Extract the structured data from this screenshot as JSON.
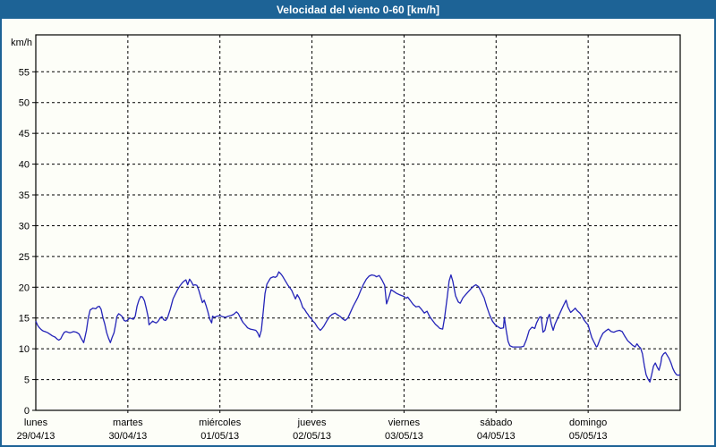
{
  "window": {
    "title": "Velocidad del viento 0-60 [km/h]"
  },
  "colors": {
    "frame_blue": "#1d6396",
    "title_text": "#ffffff",
    "chart_background": "#fdfef8",
    "plot_border": "#000000",
    "grid": "#000000",
    "line": "#2424b8",
    "label_text": "#000000"
  },
  "chart_data": {
    "type": "line",
    "title": "Velocidad del viento 0-60 [km/h]",
    "ylabel": "km/h",
    "xlabel": "",
    "ylim": [
      0,
      61
    ],
    "yticks": [
      0,
      5,
      10,
      15,
      20,
      25,
      30,
      35,
      40,
      45,
      50,
      55
    ],
    "x_range_days": [
      0,
      7
    ],
    "grid": "dashed",
    "legend": null,
    "x_days": [
      {
        "name": "lunes",
        "date": "29/04/13"
      },
      {
        "name": "martes",
        "date": "30/04/13"
      },
      {
        "name": "miércoles",
        "date": "01/05/13"
      },
      {
        "name": "jueves",
        "date": "02/05/13"
      },
      {
        "name": "viernes",
        "date": "03/05/13"
      },
      {
        "name": "sábado",
        "date": "04/05/13"
      },
      {
        "name": "domingo",
        "date": "05/05/13"
      }
    ],
    "series": [
      {
        "name": "Velocidad del viento",
        "units": "km/h",
        "color": "#2424b8",
        "points": [
          [
            0,
            14.5
          ],
          [
            0.02,
            13.8
          ],
          [
            0.04,
            13.4
          ],
          [
            0.06,
            13.1
          ],
          [
            0.08,
            12.9
          ],
          [
            0.1,
            12.8
          ],
          [
            0.13,
            12.6
          ],
          [
            0.16,
            12.3
          ],
          [
            0.18,
            12.1
          ],
          [
            0.21,
            11.9
          ],
          [
            0.23,
            11.6
          ],
          [
            0.25,
            11.4
          ],
          [
            0.27,
            11.6
          ],
          [
            0.29,
            12.2
          ],
          [
            0.31,
            12.7
          ],
          [
            0.33,
            12.8
          ],
          [
            0.35,
            12.7
          ],
          [
            0.37,
            12.6
          ],
          [
            0.39,
            12.7
          ],
          [
            0.41,
            12.8
          ],
          [
            0.44,
            12.7
          ],
          [
            0.47,
            12.4
          ],
          [
            0.49,
            11.8
          ],
          [
            0.52,
            11.0
          ],
          [
            0.53,
            11.6
          ],
          [
            0.55,
            13.0
          ],
          [
            0.57,
            15.0
          ],
          [
            0.59,
            16.3
          ],
          [
            0.62,
            16.6
          ],
          [
            0.65,
            16.5
          ],
          [
            0.67,
            16.8
          ],
          [
            0.69,
            16.9
          ],
          [
            0.71,
            16.4
          ],
          [
            0.73,
            15.0
          ],
          [
            0.75,
            14.0
          ],
          [
            0.77,
            12.6
          ],
          [
            0.79,
            11.7
          ],
          [
            0.81,
            11.0
          ],
          [
            0.83,
            11.9
          ],
          [
            0.85,
            12.6
          ],
          [
            0.87,
            14.2
          ],
          [
            0.88,
            15.2
          ],
          [
            0.9,
            15.7
          ],
          [
            0.92,
            15.5
          ],
          [
            0.94,
            15.2
          ],
          [
            0.96,
            14.6
          ],
          [
            0.98,
            14.5
          ],
          [
            1.0,
            14.7
          ],
          [
            1.02,
            15.0
          ],
          [
            1.04,
            14.9
          ],
          [
            1.06,
            14.8
          ],
          [
            1.08,
            15.3
          ],
          [
            1.1,
            16.9
          ],
          [
            1.12,
            17.9
          ],
          [
            1.14,
            18.5
          ],
          [
            1.16,
            18.4
          ],
          [
            1.18,
            17.8
          ],
          [
            1.2,
            16.6
          ],
          [
            1.22,
            15.2
          ],
          [
            1.23,
            13.9
          ],
          [
            1.25,
            14.2
          ],
          [
            1.27,
            14.5
          ],
          [
            1.29,
            14.3
          ],
          [
            1.31,
            14.2
          ],
          [
            1.33,
            14.5
          ],
          [
            1.35,
            15.0
          ],
          [
            1.37,
            15.2
          ],
          [
            1.39,
            14.7
          ],
          [
            1.41,
            14.6
          ],
          [
            1.43,
            15.0
          ],
          [
            1.46,
            16.4
          ],
          [
            1.49,
            18.1
          ],
          [
            1.52,
            19.0
          ],
          [
            1.54,
            19.6
          ],
          [
            1.56,
            20.1
          ],
          [
            1.59,
            20.7
          ],
          [
            1.61,
            21.0
          ],
          [
            1.63,
            21.2
          ],
          [
            1.65,
            20.4
          ],
          [
            1.67,
            21.3
          ],
          [
            1.69,
            20.9
          ],
          [
            1.71,
            20.3
          ],
          [
            1.73,
            20.4
          ],
          [
            1.75,
            20.3
          ],
          [
            1.77,
            19.5
          ],
          [
            1.79,
            18.5
          ],
          [
            1.81,
            17.5
          ],
          [
            1.83,
            17.9
          ],
          [
            1.85,
            17.0
          ],
          [
            1.87,
            16.0
          ],
          [
            1.89,
            14.8
          ],
          [
            1.91,
            14.2
          ],
          [
            1.92,
            15.3
          ],
          [
            1.94,
            15.1
          ],
          [
            1.97,
            15.3
          ],
          [
            2.0,
            15.4
          ],
          [
            2.03,
            15.2
          ],
          [
            2.06,
            15.1
          ],
          [
            2.09,
            15.3
          ],
          [
            2.12,
            15.4
          ],
          [
            2.15,
            15.6
          ],
          [
            2.18,
            16.0
          ],
          [
            2.2,
            15.7
          ],
          [
            2.22,
            15.1
          ],
          [
            2.25,
            14.3
          ],
          [
            2.28,
            13.8
          ],
          [
            2.3,
            13.4
          ],
          [
            2.33,
            13.2
          ],
          [
            2.36,
            13.1
          ],
          [
            2.39,
            13.0
          ],
          [
            2.41,
            12.6
          ],
          [
            2.43,
            11.9
          ],
          [
            2.45,
            13.0
          ],
          [
            2.47,
            16.0
          ],
          [
            2.49,
            19.0
          ],
          [
            2.51,
            20.5
          ],
          [
            2.53,
            21.0
          ],
          [
            2.55,
            21.5
          ],
          [
            2.58,
            21.7
          ],
          [
            2.6,
            21.6
          ],
          [
            2.62,
            21.8
          ],
          [
            2.64,
            22.5
          ],
          [
            2.66,
            22.2
          ],
          [
            2.68,
            21.8
          ],
          [
            2.7,
            21.3
          ],
          [
            2.72,
            20.8
          ],
          [
            2.74,
            20.3
          ],
          [
            2.76,
            19.9
          ],
          [
            2.78,
            19.5
          ],
          [
            2.8,
            18.8
          ],
          [
            2.82,
            18.1
          ],
          [
            2.84,
            18.8
          ],
          [
            2.86,
            18.3
          ],
          [
            2.88,
            17.6
          ],
          [
            2.9,
            16.7
          ],
          [
            2.92,
            16.4
          ],
          [
            2.94,
            15.9
          ],
          [
            2.96,
            15.5
          ],
          [
            2.97,
            15.2
          ],
          [
            2.99,
            15.0
          ],
          [
            3.01,
            14.5
          ],
          [
            3.03,
            14.2
          ],
          [
            3.06,
            13.5
          ],
          [
            3.09,
            13.0
          ],
          [
            3.11,
            13.3
          ],
          [
            3.13,
            13.7
          ],
          [
            3.16,
            14.5
          ],
          [
            3.19,
            15.2
          ],
          [
            3.22,
            15.6
          ],
          [
            3.25,
            15.8
          ],
          [
            3.28,
            15.5
          ],
          [
            3.31,
            15.2
          ],
          [
            3.33,
            14.9
          ],
          [
            3.36,
            14.6
          ],
          [
            3.39,
            15.0
          ],
          [
            3.42,
            16.0
          ],
          [
            3.45,
            17.0
          ],
          [
            3.48,
            17.8
          ],
          [
            3.5,
            18.4
          ],
          [
            3.53,
            19.5
          ],
          [
            3.56,
            20.5
          ],
          [
            3.59,
            21.3
          ],
          [
            3.62,
            21.8
          ],
          [
            3.65,
            22.0
          ],
          [
            3.68,
            21.9
          ],
          [
            3.7,
            21.7
          ],
          [
            3.73,
            21.9
          ],
          [
            3.76,
            21.2
          ],
          [
            3.79,
            20.3
          ],
          [
            3.81,
            17.3
          ],
          [
            3.84,
            18.6
          ],
          [
            3.86,
            19.6
          ],
          [
            3.89,
            19.3
          ],
          [
            3.92,
            19.0
          ],
          [
            3.95,
            18.8
          ],
          [
            3.98,
            18.6
          ],
          [
            4.0,
            18.5
          ],
          [
            4.02,
            18.2
          ],
          [
            4.04,
            18.4
          ],
          [
            4.07,
            17.8
          ],
          [
            4.1,
            17.2
          ],
          [
            4.13,
            16.8
          ],
          [
            4.16,
            16.9
          ],
          [
            4.19,
            16.4
          ],
          [
            4.22,
            15.8
          ],
          [
            4.25,
            16.1
          ],
          [
            4.28,
            15.2
          ],
          [
            4.31,
            14.6
          ],
          [
            4.34,
            14.0
          ],
          [
            4.37,
            13.6
          ],
          [
            4.39,
            13.3
          ],
          [
            4.42,
            13.2
          ],
          [
            4.44,
            15.0
          ],
          [
            4.47,
            18.5
          ],
          [
            4.49,
            21.0
          ],
          [
            4.51,
            22.0
          ],
          [
            4.53,
            21.0
          ],
          [
            4.56,
            18.6
          ],
          [
            4.59,
            17.6
          ],
          [
            4.61,
            17.4
          ],
          [
            4.64,
            18.3
          ],
          [
            4.67,
            18.8
          ],
          [
            4.7,
            19.3
          ],
          [
            4.73,
            19.8
          ],
          [
            4.75,
            20.1
          ],
          [
            4.78,
            20.4
          ],
          [
            4.81,
            20.1
          ],
          [
            4.84,
            19.2
          ],
          [
            4.87,
            18.3
          ],
          [
            4.9,
            16.8
          ],
          [
            4.93,
            15.5
          ],
          [
            4.96,
            14.5
          ],
          [
            4.99,
            13.9
          ],
          [
            5.02,
            13.6
          ],
          [
            5.05,
            13.3
          ],
          [
            5.08,
            13.4
          ],
          [
            5.09,
            15.1
          ],
          [
            5.11,
            13.0
          ],
          [
            5.13,
            11.2
          ],
          [
            5.15,
            10.5
          ],
          [
            5.18,
            10.3
          ],
          [
            5.21,
            10.3
          ],
          [
            5.24,
            10.3
          ],
          [
            5.27,
            10.3
          ],
          [
            5.3,
            10.4
          ],
          [
            5.33,
            11.5
          ],
          [
            5.36,
            13.0
          ],
          [
            5.39,
            13.5
          ],
          [
            5.42,
            13.3
          ],
          [
            5.44,
            14.2
          ],
          [
            5.47,
            15.1
          ],
          [
            5.49,
            15.2
          ],
          [
            5.51,
            12.7
          ],
          [
            5.53,
            13.0
          ],
          [
            5.56,
            15.0
          ],
          [
            5.58,
            15.6
          ],
          [
            5.6,
            14.0
          ],
          [
            5.62,
            13.0
          ],
          [
            5.64,
            14.0
          ],
          [
            5.67,
            15.0
          ],
          [
            5.7,
            16.0
          ],
          [
            5.73,
            17.0
          ],
          [
            5.76,
            17.9
          ],
          [
            5.78,
            16.8
          ],
          [
            5.81,
            15.9
          ],
          [
            5.84,
            16.3
          ],
          [
            5.86,
            16.6
          ],
          [
            5.88,
            16.2
          ],
          [
            5.91,
            15.8
          ],
          [
            5.93,
            15.4
          ],
          [
            5.96,
            14.6
          ],
          [
            5.98,
            14.2
          ],
          [
            6.0,
            13.9
          ],
          [
            6.02,
            12.8
          ],
          [
            6.04,
            11.8
          ],
          [
            6.06,
            11.2
          ],
          [
            6.09,
            10.3
          ],
          [
            6.1,
            10.4
          ],
          [
            6.13,
            11.6
          ],
          [
            6.16,
            12.5
          ],
          [
            6.19,
            12.9
          ],
          [
            6.22,
            13.2
          ],
          [
            6.25,
            12.8
          ],
          [
            6.28,
            12.7
          ],
          [
            6.31,
            12.9
          ],
          [
            6.34,
            13.0
          ],
          [
            6.37,
            12.8
          ],
          [
            6.4,
            12.0
          ],
          [
            6.43,
            11.3
          ],
          [
            6.46,
            10.9
          ],
          [
            6.48,
            10.6
          ],
          [
            6.51,
            10.3
          ],
          [
            6.53,
            10.8
          ],
          [
            6.55,
            10.4
          ],
          [
            6.57,
            10.1
          ],
          [
            6.59,
            9.2
          ],
          [
            6.61,
            7.3
          ],
          [
            6.63,
            5.8
          ],
          [
            6.65,
            5.1
          ],
          [
            6.67,
            4.6
          ],
          [
            6.69,
            5.8
          ],
          [
            6.71,
            7.2
          ],
          [
            6.73,
            7.7
          ],
          [
            6.75,
            7.0
          ],
          [
            6.77,
            6.5
          ],
          [
            6.79,
            7.7
          ],
          [
            6.8,
            8.7
          ],
          [
            6.82,
            9.2
          ],
          [
            6.84,
            9.4
          ],
          [
            6.86,
            8.9
          ],
          [
            6.88,
            8.4
          ],
          [
            6.9,
            7.7
          ],
          [
            6.92,
            6.8
          ],
          [
            6.94,
            6.2
          ],
          [
            6.96,
            5.8
          ],
          [
            6.98,
            5.7
          ],
          [
            7.0,
            5.8
          ]
        ]
      }
    ]
  }
}
